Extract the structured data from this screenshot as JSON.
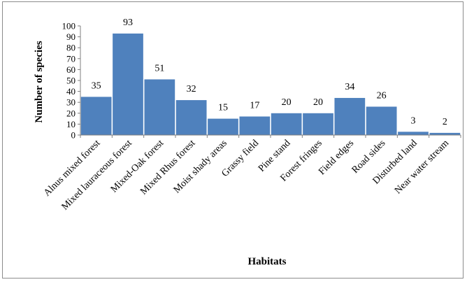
{
  "chart_data": {
    "type": "bar",
    "title": "",
    "xlabel": "Habitats",
    "ylabel": "Number of species",
    "ylim": [
      0,
      100
    ],
    "yticks": [
      0,
      10,
      20,
      30,
      40,
      50,
      60,
      70,
      80,
      90,
      100
    ],
    "grid": false,
    "legend": "none",
    "bar_color": "#4F81BD",
    "categories": [
      "Alnus mixed forest",
      "Mixed lauraceous forest",
      "Mixed-Oak forest",
      "Mixed Rhus forest",
      "Moist shady areas",
      "Grassy field",
      "Pine stand",
      "Forest fringes",
      "Field edges",
      "Road sides",
      "Disturbed land",
      "Near water stream"
    ],
    "values": [
      35,
      93,
      51,
      32,
      15,
      17,
      20,
      20,
      34,
      26,
      3,
      2
    ]
  }
}
